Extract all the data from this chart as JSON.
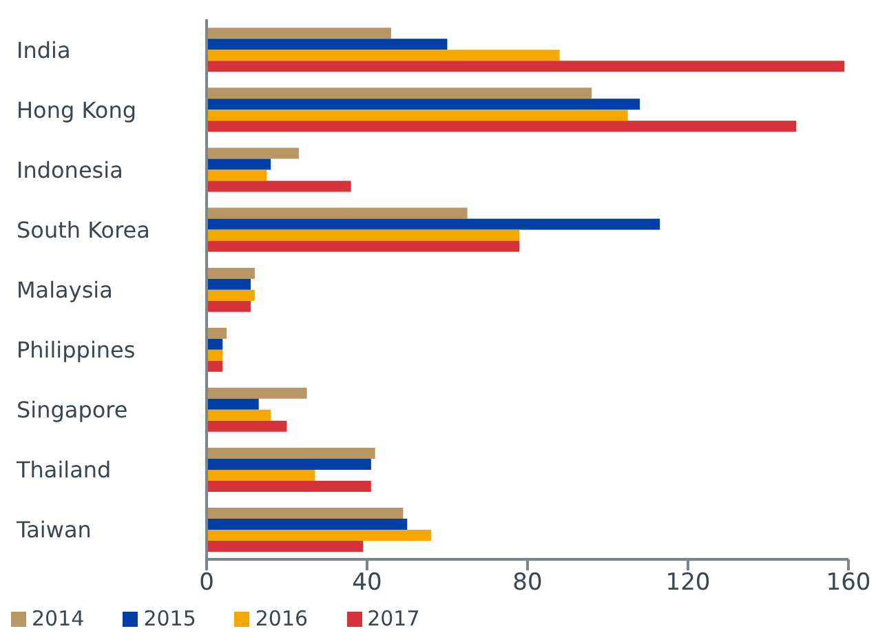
{
  "chart_data": {
    "type": "bar",
    "orientation": "horizontal",
    "categories": [
      "India",
      "Hong Kong",
      "Indonesia",
      "South Korea",
      "Malaysia",
      "Philippines",
      "Singapore",
      "Thailand",
      "Taiwan"
    ],
    "series": [
      {
        "name": "2014",
        "color": "#b89765",
        "values": [
          46,
          96,
          23,
          65,
          12,
          5,
          25,
          42,
          49
        ]
      },
      {
        "name": "2015",
        "color": "#0040a6",
        "values": [
          60,
          108,
          16,
          113,
          11,
          4,
          13,
          41,
          50
        ]
      },
      {
        "name": "2016",
        "color": "#f5a800",
        "values": [
          88,
          105,
          15,
          78,
          12,
          4,
          16,
          27,
          56
        ]
      },
      {
        "name": "2017",
        "color": "#d63239",
        "values": [
          159,
          147,
          36,
          78,
          11,
          4,
          20,
          41,
          39
        ]
      }
    ],
    "xlim": [
      0,
      160
    ],
    "xticks": [
      0,
      40,
      80,
      120,
      160
    ],
    "grid": false,
    "legend": "bottom left"
  }
}
